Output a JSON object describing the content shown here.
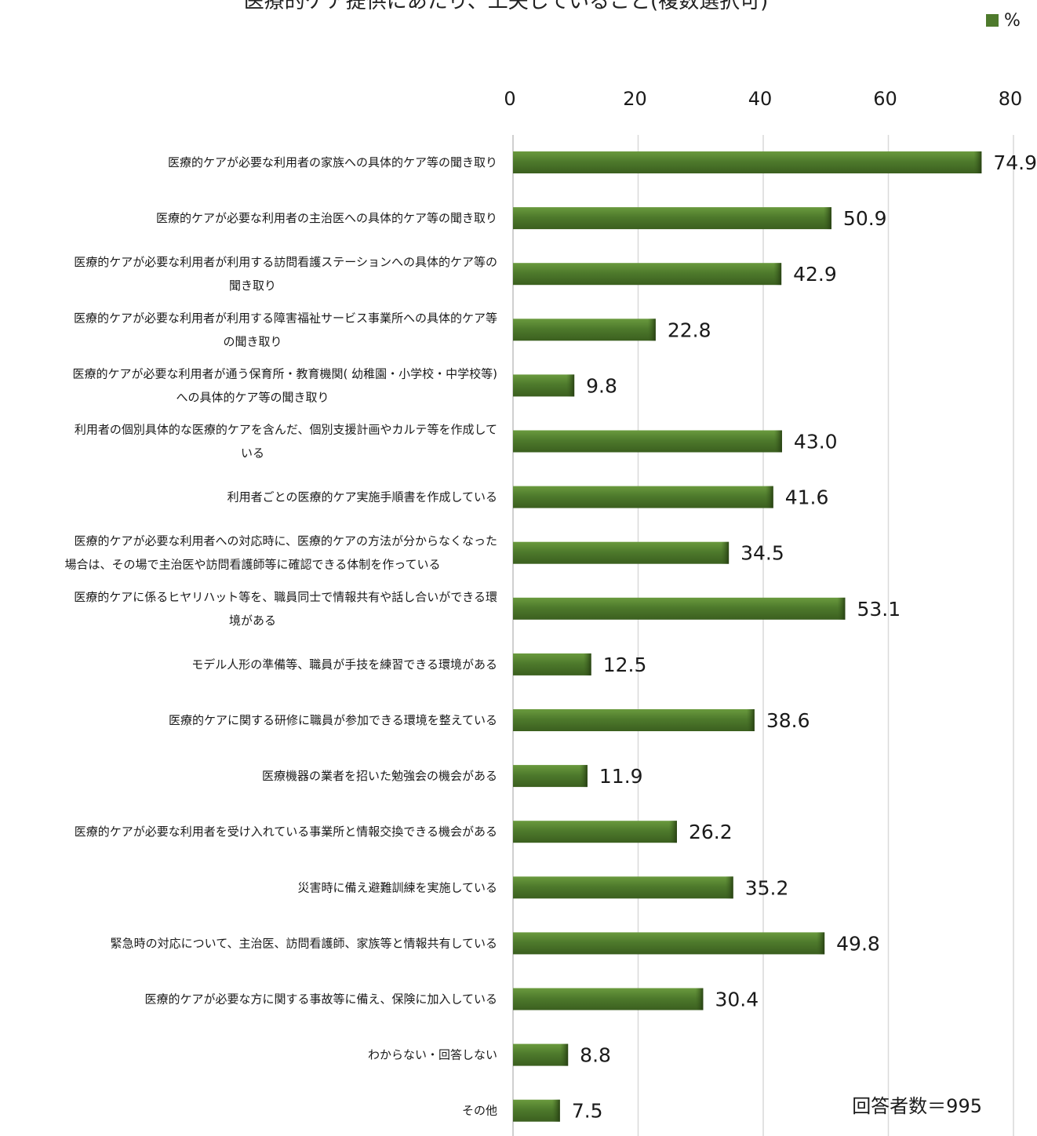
{
  "chart_data": {
    "type": "bar",
    "orientation": "horizontal",
    "title": "医療的ケア提供にあたり、工夫していること(複数選択可)",
    "legend": {
      "label": "%",
      "position": "top-right",
      "color": "#4e7a2c"
    },
    "xlim": [
      0,
      80
    ],
    "xticks": [
      "0",
      "20",
      "40",
      "60",
      "80"
    ],
    "grid": true,
    "bar_color": "#4e7a2c",
    "note": "回答者数＝995",
    "categories": [
      [
        "医療的ケアが必要な利用者の家族への具体的ケア等の聞き取り"
      ],
      [
        "医療的ケアが必要な利用者の主治医への具体的ケア等の聞き取り"
      ],
      [
        "医療的ケアが必要な利用者が利用する訪問看護ステーションへの具体的ケア等の",
        "聞き取り"
      ],
      [
        "医療的ケアが必要な利用者が利用する障害福祉サービス事業所への具体的ケア等",
        "の聞き取り"
      ],
      [
        "医療的ケアが必要な利用者が通う保育所・教育機関( 幼稚園・小学校・中学校等)",
        "への具体的ケア等の聞き取り"
      ],
      [
        "利用者の個別具体的な医療的ケアを含んだ、個別支援計画やカルテ等を作成して",
        "いる"
      ],
      [
        "利用者ごとの医療的ケア実施手順書を作成している"
      ],
      [
        "医療的ケアが必要な利用者への対応時に、医療的ケアの方法が分からなくなった",
        "場合は、その場で主治医や訪問看護師等に確認できる体制を作っている"
      ],
      [
        "医療的ケアに係るヒヤリハット等を、職員同士で情報共有や話し合いができる環",
        "境がある"
      ],
      [
        "モデル人形の準備等、職員が手技を練習できる環境がある"
      ],
      [
        "医療的ケアに関する研修に職員が参加できる環境を整えている"
      ],
      [
        "医療機器の業者を招いた勉強会の機会がある"
      ],
      [
        "医療的ケアが必要な利用者を受け入れている事業所と情報交換できる機会がある"
      ],
      [
        "災害時に備え避難訓練を実施している"
      ],
      [
        "緊急時の対応について、主治医、訪問看護師、家族等と情報共有している"
      ],
      [
        "医療的ケアが必要な方に関する事故等に備え、保険に加入している"
      ],
      [
        "わからない・回答しない"
      ],
      [
        "その他"
      ]
    ],
    "values": [
      74.9,
      50.9,
      42.9,
      22.8,
      9.8,
      43.0,
      41.6,
      34.5,
      53.1,
      12.5,
      38.6,
      11.9,
      26.2,
      35.2,
      49.8,
      30.4,
      8.8,
      7.5
    ],
    "value_labels": [
      "74.9",
      "50.9",
      "42.9",
      "22.8",
      "9.8",
      "43.0",
      "41.6",
      "34.5",
      "53.1",
      "12.5",
      "38.6",
      "11.9",
      "26.2",
      "35.2",
      "49.8",
      "30.4",
      "8.8",
      "7.5"
    ]
  }
}
